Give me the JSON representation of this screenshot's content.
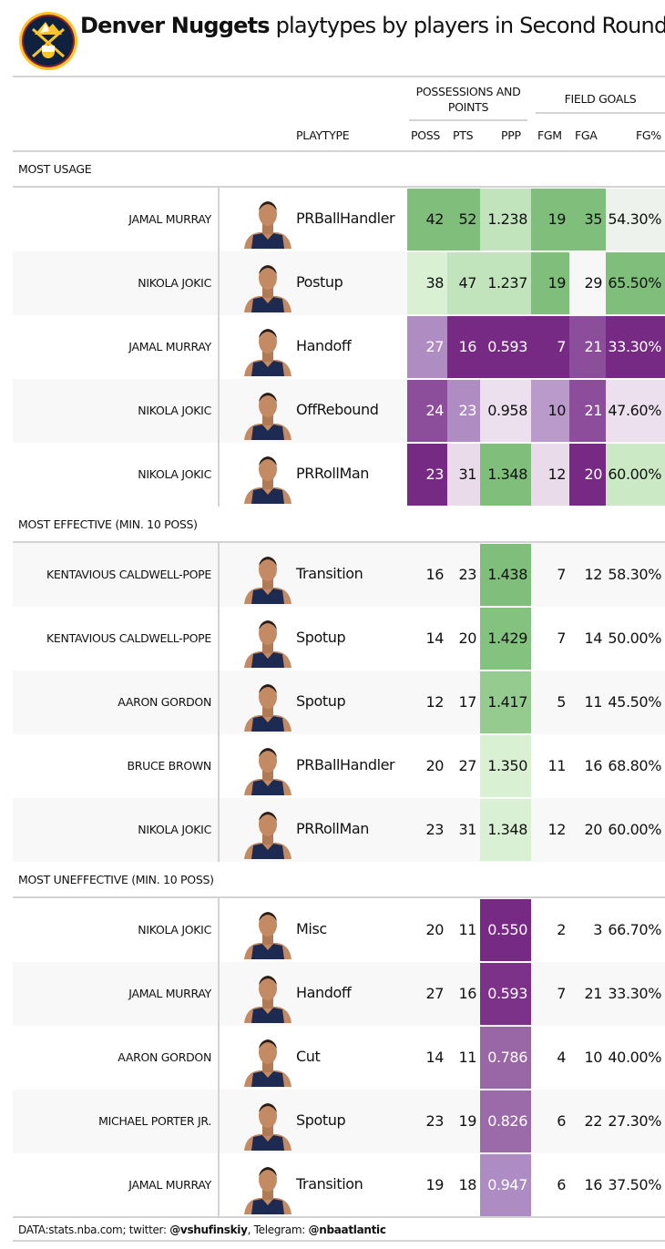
{
  "title": {
    "bold": "Denver Nuggets",
    "rest": " playtypes by players in Second Round"
  },
  "logo": "denver-nuggets-logo",
  "groups": {
    "poss_pts": "POSSESSIONS AND POINTS",
    "field_goals": "FIELD GOALS"
  },
  "columns": {
    "playtype": "PLAYTYPE",
    "poss": "POSS",
    "pts": "PTS",
    "ppp": "PPP",
    "fgm": "FGM",
    "fga": "FGA",
    "fgp": "FG%"
  },
  "chart_data": {
    "type": "table",
    "sections": [
      {
        "label": "MOST USAGE",
        "rows": [
          {
            "player": "JAMAL MURRAY",
            "playtype": "PRBallHandler",
            "poss": "42",
            "pts": "52",
            "ppp": "1.238",
            "fgm": "19",
            "fga": "35",
            "fgp": "54.30%",
            "fills": [
              "#7fbf7b",
              "#7fbf7b",
              "#c2e4bd",
              "#7fbf7b",
              "#7fbf7b",
              "#eef2ec"
            ]
          },
          {
            "player": "NIKOLA JOKIC",
            "playtype": "Postup",
            "poss": "38",
            "pts": "47",
            "ppp": "1.237",
            "fgm": "19",
            "fga": "29",
            "fgp": "65.50%",
            "fills": [
              "#d9f0d3",
              "#c2e4bd",
              "#c2e4bd",
              "#7fbf7b",
              "#f7f7f7",
              "#7fbf7b"
            ]
          },
          {
            "player": "JAMAL MURRAY",
            "playtype": "Handoff",
            "poss": "27",
            "pts": "16",
            "ppp": "0.593",
            "fgm": "7",
            "fga": "21",
            "fgp": "33.30%",
            "fills": [
              "#af8dc3",
              "#762a83",
              "#762a83",
              "#762a83",
              "#8c4d9a",
              "#762a83"
            ]
          },
          {
            "player": "NIKOLA JOKIC",
            "playtype": "OffRebound",
            "poss": "24",
            "pts": "23",
            "ppp": "0.958",
            "fgm": "10",
            "fga": "21",
            "fgp": "47.60%",
            "fills": [
              "#8c4d9a",
              "#af8dc3",
              "#ede0ee",
              "#b99acb",
              "#8c4d9a",
              "#ede0ee"
            ]
          },
          {
            "player": "NIKOLA JOKIC",
            "playtype": "PRRollMan",
            "poss": "23",
            "pts": "31",
            "ppp": "1.348",
            "fgm": "12",
            "fga": "20",
            "fgp": "60.00%",
            "fills": [
              "#762a83",
              "#e9dbea",
              "#7fbf7b",
              "#e9dbea",
              "#762a83",
              "#cbe9c5"
            ]
          }
        ]
      },
      {
        "label": "MOST EFFECTIVE (MIN. 10 POSS)",
        "rows": [
          {
            "player": "KENTAVIOUS CALDWELL-POPE",
            "playtype": "Transition",
            "poss": "16",
            "pts": "23",
            "ppp": "1.438",
            "fgm": "7",
            "fga": "12",
            "fgp": "58.30%",
            "fills": [
              null,
              null,
              "#7fbf7b",
              null,
              null,
              null
            ]
          },
          {
            "player": "KENTAVIOUS CALDWELL-POPE",
            "playtype": "Spotup",
            "poss": "14",
            "pts": "20",
            "ppp": "1.429",
            "fgm": "7",
            "fga": "14",
            "fgp": "50.00%",
            "fills": [
              null,
              null,
              "#84c280",
              null,
              null,
              null
            ]
          },
          {
            "player": "AARON GORDON",
            "playtype": "Spotup",
            "poss": "12",
            "pts": "17",
            "ppp": "1.417",
            "fgm": "5",
            "fga": "11",
            "fgp": "45.50%",
            "fills": [
              null,
              null,
              "#95cb8f",
              null,
              null,
              null
            ]
          },
          {
            "player": "BRUCE BROWN",
            "playtype": "PRBallHandler",
            "poss": "20",
            "pts": "27",
            "ppp": "1.350",
            "fgm": "11",
            "fga": "16",
            "fgp": "68.80%",
            "fills": [
              null,
              null,
              "#d9f0d3",
              null,
              null,
              null
            ]
          },
          {
            "player": "NIKOLA JOKIC",
            "playtype": "PRRollMan",
            "poss": "23",
            "pts": "31",
            "ppp": "1.348",
            "fgm": "12",
            "fga": "20",
            "fgp": "60.00%",
            "fills": [
              null,
              null,
              "#daf0d4",
              null,
              null,
              null
            ]
          }
        ]
      },
      {
        "label": "MOST UNEFFECTIVE (MIN. 10 POSS)",
        "rows": [
          {
            "player": "NIKOLA JOKIC",
            "playtype": "Misc",
            "poss": "20",
            "pts": "11",
            "ppp": "0.550",
            "fgm": "2",
            "fga": "3",
            "fgp": "66.70%",
            "fills": [
              null,
              null,
              "#762a83",
              null,
              null,
              null
            ]
          },
          {
            "player": "JAMAL MURRAY",
            "playtype": "Handoff",
            "poss": "27",
            "pts": "16",
            "ppp": "0.593",
            "fgm": "7",
            "fga": "21",
            "fgp": "33.30%",
            "fills": [
              null,
              null,
              "#7b3288",
              null,
              null,
              null
            ]
          },
          {
            "player": "AARON GORDON",
            "playtype": "Cut",
            "poss": "14",
            "pts": "11",
            "ppp": "0.786",
            "fgm": "4",
            "fga": "10",
            "fgp": "40.00%",
            "fills": [
              null,
              null,
              "#9966a6",
              null,
              null,
              null
            ]
          },
          {
            "player": "MICHAEL PORTER JR.",
            "playtype": "Spotup",
            "poss": "23",
            "pts": "19",
            "ppp": "0.826",
            "fgm": "6",
            "fga": "22",
            "fgp": "27.30%",
            "fills": [
              null,
              null,
              "#9b6ba9",
              null,
              null,
              null
            ]
          },
          {
            "player": "JAMAL MURRAY",
            "playtype": "Transition",
            "poss": "19",
            "pts": "18",
            "ppp": "0.947",
            "fgm": "6",
            "fga": "16",
            "fgp": "37.50%",
            "fills": [
              null,
              null,
              "#ad8cc4",
              null,
              null,
              null
            ]
          }
        ]
      }
    ]
  },
  "footer": {
    "data": "DATA:stats.nba.com; twitter: ",
    "twitter": "@vshufinskiy",
    "mid": ", Telegram: ",
    "telegram": "@nbaatlantic"
  }
}
